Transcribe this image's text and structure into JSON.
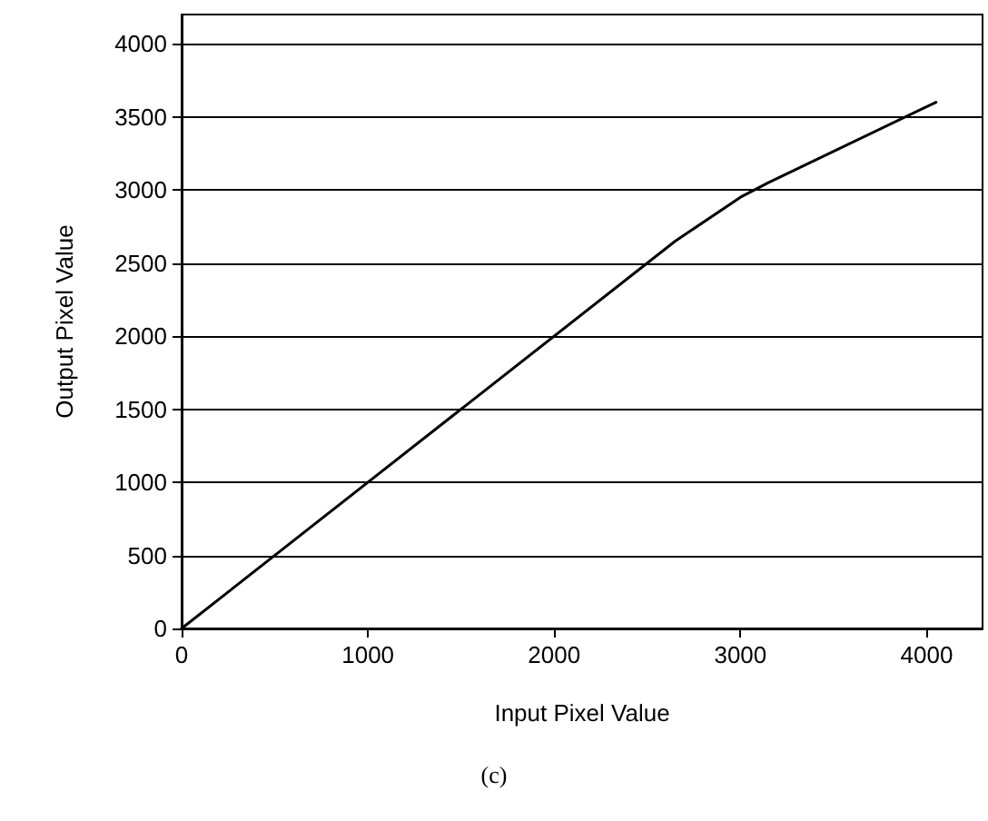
{
  "chart_data": {
    "type": "line",
    "xlabel": "Input Pixel Value",
    "ylabel": "Output Pixel Value",
    "x": [
      0,
      2650,
      3000,
      3150,
      4050
    ],
    "series": [
      {
        "color": "#000000",
        "values": [
          0,
          2650,
          2950,
          3050,
          3600
        ]
      }
    ],
    "xlim": [
      0,
      4300
    ],
    "xticks": [
      0,
      1000,
      2000,
      3000,
      4000
    ],
    "ylim": [
      0,
      4200
    ],
    "yticks": [
      0,
      500,
      1000,
      1500,
      2000,
      2500,
      3000,
      3500,
      4000
    ],
    "grid": "y",
    "marker": "none",
    "line_style": "solid",
    "annotations": [
      "(c)"
    ]
  }
}
